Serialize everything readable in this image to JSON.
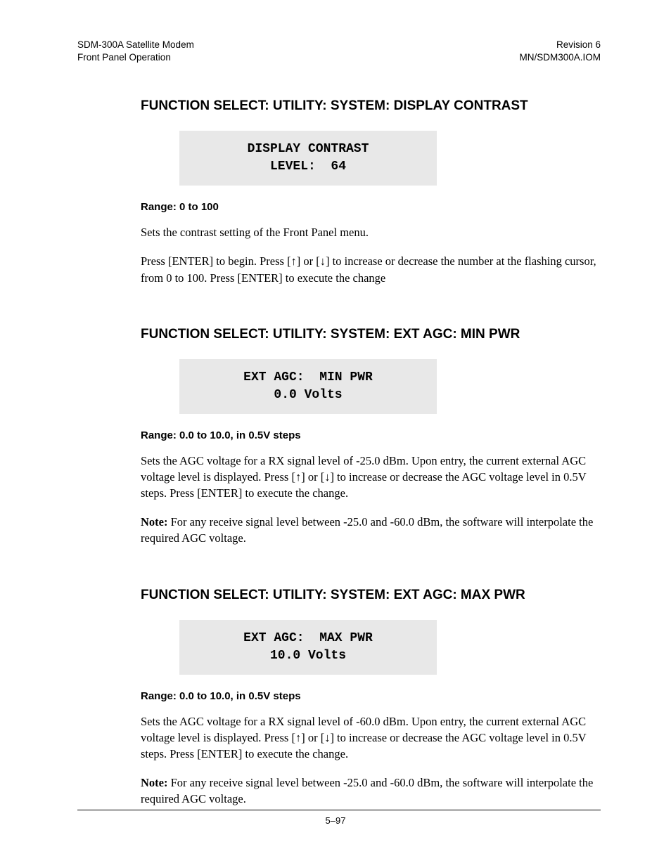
{
  "header": {
    "left1": "SDM-300A Satellite Modem",
    "left2": "Front Panel Operation",
    "right1": "Revision 6",
    "right2": "MN/SDM300A.IOM"
  },
  "sec1": {
    "title": "FUNCTION SELECT: UTILITY: SYSTEM: DISPLAY CONTRAST",
    "lcd_line1": "DISPLAY CONTRAST",
    "lcd_line2": "LEVEL:  64",
    "range": "Range: 0 to 100",
    "p1": "Sets the contrast setting of the Front Panel menu.",
    "p2": "Press [ENTER] to begin. Press [↑] or [↓] to increase or decrease the number at the flashing cursor, from 0 to 100. Press [ENTER] to execute the change"
  },
  "sec2": {
    "title": "FUNCTION SELECT: UTILITY: SYSTEM: EXT AGC: MIN PWR",
    "lcd_line1": "EXT AGC:  MIN PWR",
    "lcd_line2": "0.0 Volts",
    "range": "Range: 0.0 to 10.0, in 0.5V steps",
    "p1": "Sets the AGC voltage for a RX signal level of -25.0 dBm. Upon entry, the current external AGC voltage level is displayed. Press [↑] or [↓] to increase or decrease the AGC voltage level in 0.5V steps. Press [ENTER] to execute the change.",
    "note_label": "Note:",
    "note_text": " For any receive signal level between -25.0 and -60.0 dBm, the software will interpolate the required AGC voltage."
  },
  "sec3": {
    "title": "FUNCTION SELECT: UTILITY: SYSTEM: EXT AGC: MAX PWR",
    "lcd_line1": "EXT AGC:  MAX PWR",
    "lcd_line2": "10.0 Volts",
    "range": "Range: 0.0 to 10.0, in 0.5V steps",
    "p1": "Sets the AGC voltage for a RX signal level of -60.0 dBm. Upon entry, the current external AGC voltage level is displayed. Press [↑] or [↓] to increase or decrease the AGC voltage level in 0.5V steps. Press [ENTER] to execute the change.",
    "note_label": "Note:",
    "note_text": " For any receive signal level between -25.0 and -60.0 dBm, the software will interpolate the required AGC voltage."
  },
  "footer": {
    "page": "5–97"
  },
  "style": {
    "lcd_bg": "#e8e8e8",
    "page_bg": "#ffffff",
    "text_color": "#000000",
    "body_font": "Times New Roman",
    "heading_font": "Arial",
    "mono_font": "Courier New"
  }
}
